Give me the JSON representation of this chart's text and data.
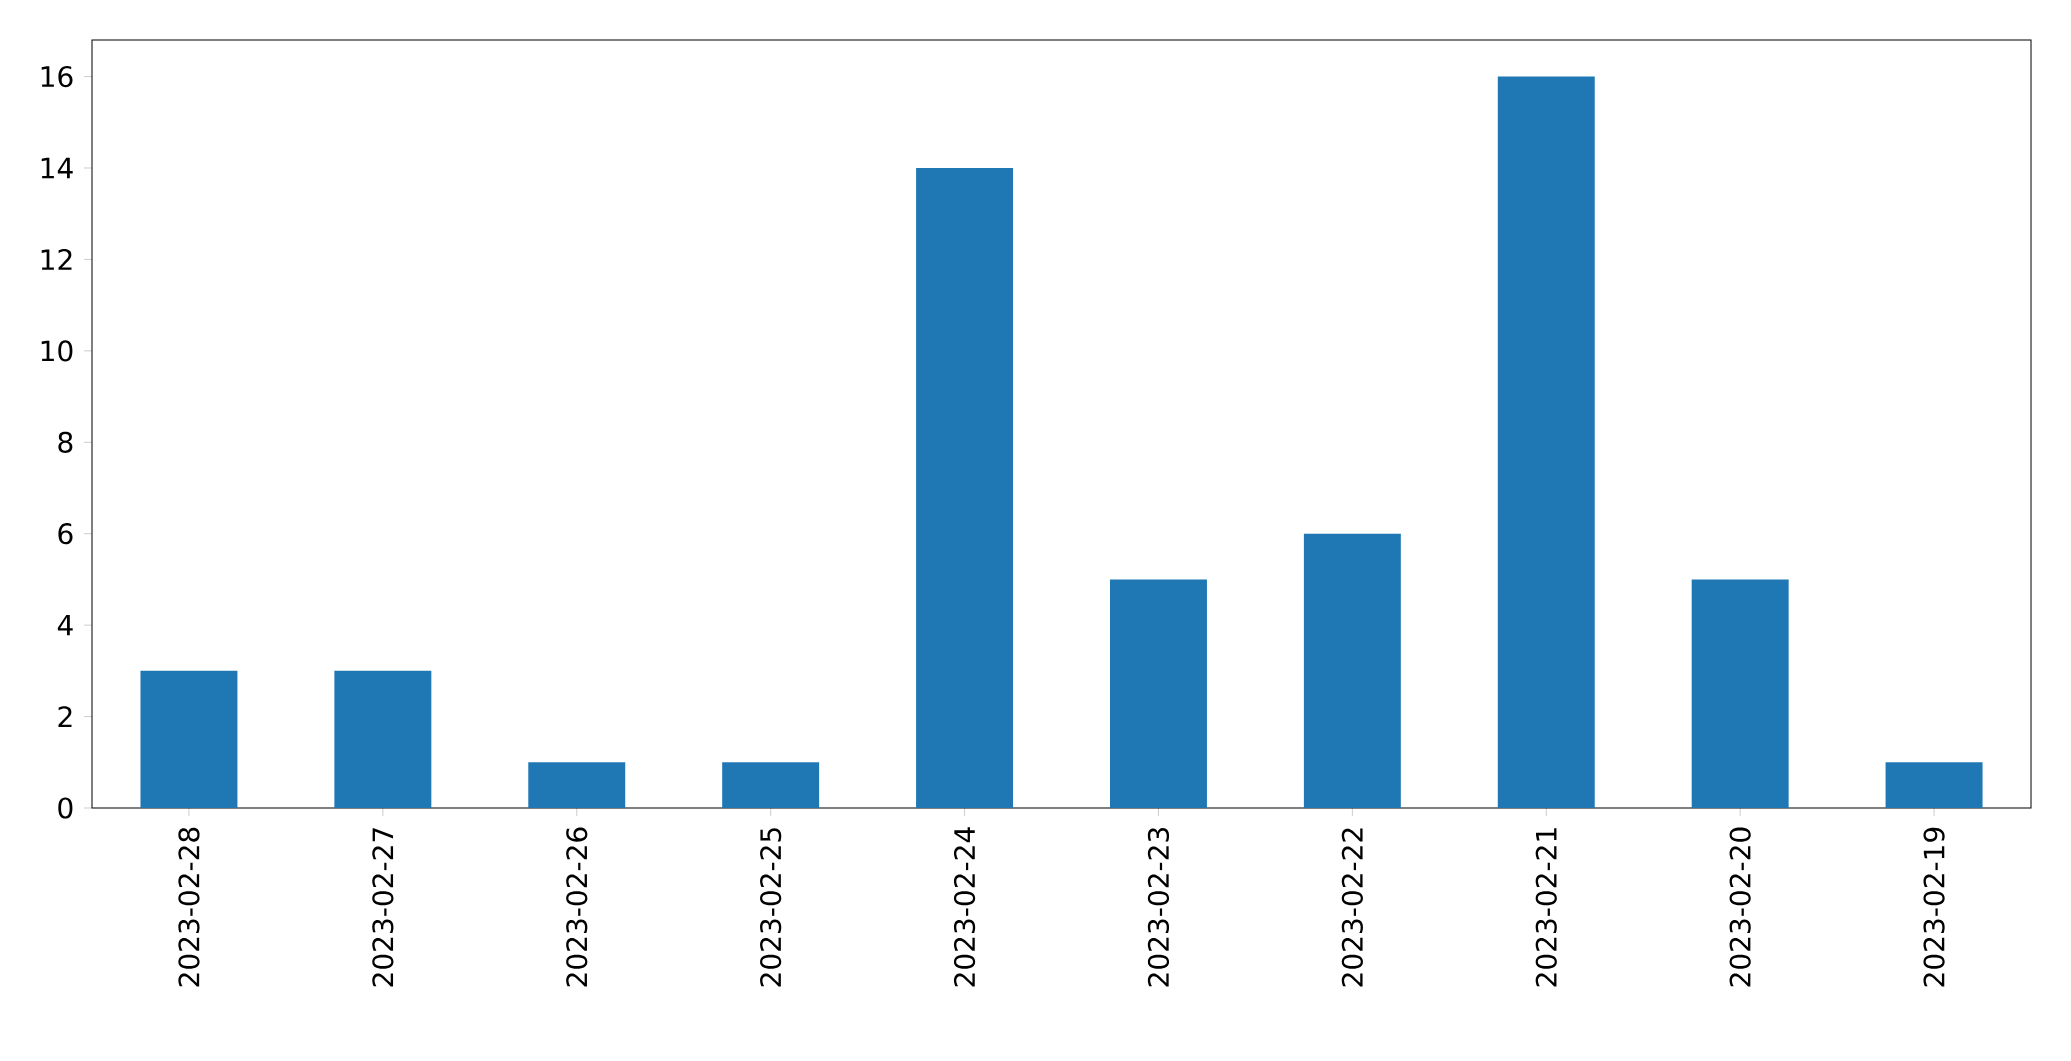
{
  "chart_data": {
    "type": "bar",
    "categories": [
      "2023-02-28",
      "2023-02-27",
      "2023-02-26",
      "2023-02-25",
      "2023-02-24",
      "2023-02-23",
      "2023-02-22",
      "2023-02-21",
      "2023-02-20",
      "2023-02-19"
    ],
    "values": [
      3,
      3,
      1,
      1,
      14,
      5,
      6,
      16,
      5,
      1
    ],
    "color": "#1f77b4",
    "ylim": [
      0,
      16.8
    ],
    "yticks": [
      0,
      2,
      4,
      6,
      8,
      10,
      12,
      14,
      16
    ]
  }
}
